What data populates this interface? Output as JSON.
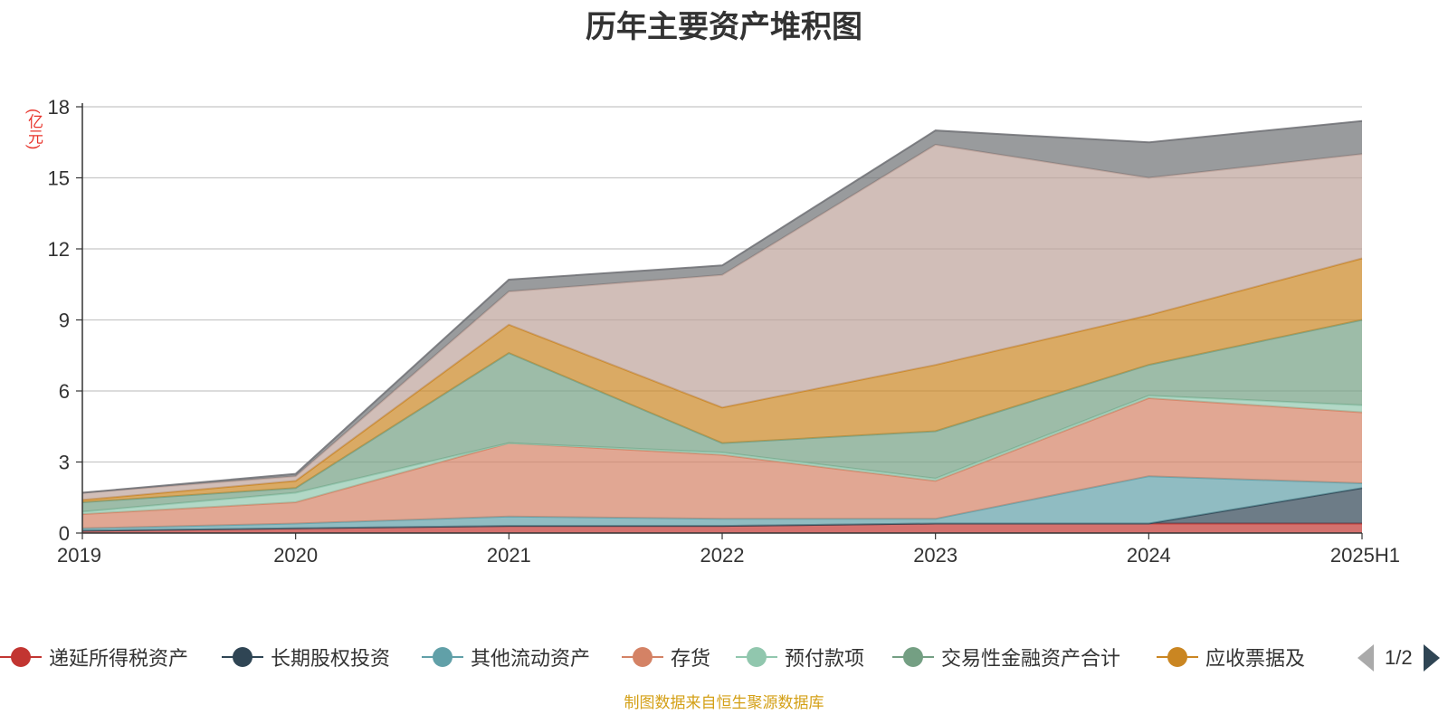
{
  "chart_data": {
    "type": "area",
    "stacked": true,
    "title": "历年主要资产堆积图",
    "yunit": "(亿元)",
    "categories": [
      "2019",
      "2020",
      "2021",
      "2022",
      "2023",
      "2024",
      "2025H1"
    ],
    "ylim": [
      0,
      18
    ],
    "yticks": [
      0,
      3,
      6,
      9,
      12,
      15,
      18
    ],
    "grid": true,
    "series": [
      {
        "name": "递延所得税资产",
        "color": "#c23531",
        "values": [
          0.1,
          0.2,
          0.3,
          0.3,
          0.4,
          0.4,
          0.4
        ]
      },
      {
        "name": "长期股权投资",
        "color": "#2f4554",
        "values": [
          0.0,
          0.0,
          0.0,
          0.0,
          0.0,
          0.0,
          1.5
        ]
      },
      {
        "name": "其他流动资产",
        "color": "#61a0a8",
        "values": [
          0.1,
          0.2,
          0.4,
          0.3,
          0.2,
          2.0,
          0.2
        ]
      },
      {
        "name": "存货",
        "color": "#d48265",
        "values": [
          0.6,
          0.9,
          3.1,
          2.7,
          1.6,
          3.3,
          3.0
        ]
      },
      {
        "name": "预付款项",
        "color": "#91c7ae",
        "values": [
          0.1,
          0.4,
          0.0,
          0.1,
          0.1,
          0.1,
          0.3
        ]
      },
      {
        "name": "交易性金融资产合计",
        "color": "#749f83",
        "values": [
          0.4,
          0.2,
          3.8,
          0.4,
          2.0,
          1.3,
          3.6
        ]
      },
      {
        "name": "应收票据及",
        "color": "#ca8622",
        "values": [
          0.1,
          0.3,
          1.2,
          1.5,
          2.8,
          2.1,
          2.6
        ]
      },
      {
        "color": "#bda29a",
        "values": [
          0.3,
          0.2,
          1.4,
          5.6,
          9.3,
          5.8,
          4.4
        ]
      },
      {
        "color": "#6e7074",
        "values": [
          0.0,
          0.1,
          0.5,
          0.4,
          0.6,
          1.5,
          1.4
        ]
      }
    ],
    "legend_position": "bottom",
    "legend_page": "1/2"
  },
  "source": "制图数据来自恒生聚源数据库"
}
